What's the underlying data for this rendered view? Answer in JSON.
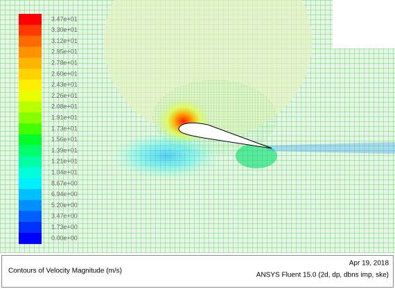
{
  "legend": {
    "levels": [
      {
        "label": "3.47e+01",
        "color": "#ff0000"
      },
      {
        "label": "3.30e+01",
        "color": "#ff3a00"
      },
      {
        "label": "3.12e+01",
        "color": "#ff6a00"
      },
      {
        "label": "2.95e+01",
        "color": "#ff9200"
      },
      {
        "label": "2.78e+01",
        "color": "#ffb400"
      },
      {
        "label": "2.60e+01",
        "color": "#ffd200"
      },
      {
        "label": "2.43e+01",
        "color": "#ffee00"
      },
      {
        "label": "2.26e+01",
        "color": "#e8ff00"
      },
      {
        "label": "2.08e+01",
        "color": "#b8ff00"
      },
      {
        "label": "1.91e+01",
        "color": "#86ff00"
      },
      {
        "label": "1.73e+01",
        "color": "#44ff00"
      },
      {
        "label": "1.56e+01",
        "color": "#00ff2a"
      },
      {
        "label": "1.39e+01",
        "color": "#00ff6a"
      },
      {
        "label": "1.21e+01",
        "color": "#00ffa4"
      },
      {
        "label": "1.04e+01",
        "color": "#00ffd8"
      },
      {
        "label": "8.67e+00",
        "color": "#00f0ff"
      },
      {
        "label": "6.94e+00",
        "color": "#00c0ff"
      },
      {
        "label": "5.20e+00",
        "color": "#0090ff"
      },
      {
        "label": "3.47e+00",
        "color": "#0060ff"
      },
      {
        "label": "1.73e+00",
        "color": "#0030ff"
      },
      {
        "label": "0.00e+00",
        "color": "#0000ff"
      }
    ]
  },
  "footer": {
    "title": "Contours of Velocity Magnitude (m/s)",
    "date": "Apr 19, 2018",
    "software": "ANSYS Fluent 15.0 (2d, dp, dbns imp, ske)"
  }
}
